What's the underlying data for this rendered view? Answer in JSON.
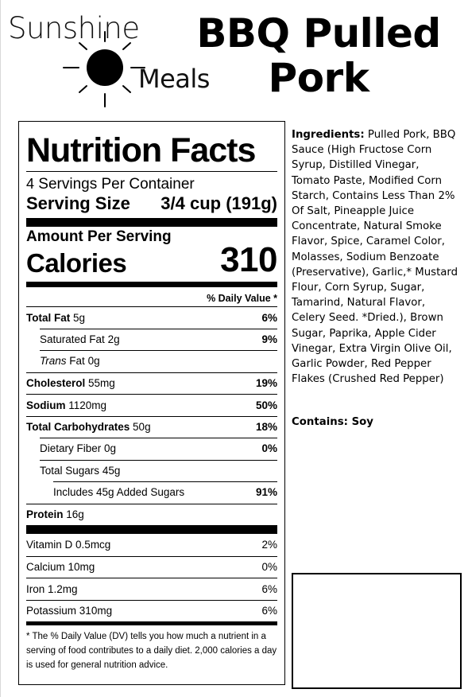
{
  "logo": {
    "word1": "Sunshine",
    "word2": "Meals",
    "icon": "sun-icon"
  },
  "product": {
    "title_line1": "BBQ Pulled",
    "title_line2": "Pork"
  },
  "nutrition": {
    "heading": "Nutrition Facts",
    "servings_count": "4",
    "servings_text": "Servings Per Container",
    "serving_size_label": "Serving Size",
    "serving_size_value": "3/4 cup (191g)",
    "amount_per_serving": "Amount Per Serving",
    "calories_label": "Calories",
    "calories_value": "310",
    "dv_header": "% Daily Value *",
    "rows": [
      {
        "name": "Total Fat",
        "amount": "5g",
        "dv": "6%"
      },
      {
        "name": "Saturated Fat",
        "amount": "2g",
        "dv": "9%"
      },
      {
        "name_italic": "Trans",
        "name": "Fat",
        "amount": "0g",
        "dv": ""
      },
      {
        "name": "Cholesterol",
        "amount": "55mg",
        "dv": "19%"
      },
      {
        "name": "Sodium",
        "amount": "1120mg",
        "dv": "50%"
      },
      {
        "name": "Total Carbohydrates",
        "amount": "50g",
        "dv": "18%"
      },
      {
        "name": "Dietary Fiber",
        "amount": "0g",
        "dv": "0%"
      },
      {
        "name": "Total Sugars",
        "amount": "45g",
        "dv": ""
      },
      {
        "name": "Includes 45g Added Sugars",
        "amount": "",
        "dv": "91%"
      },
      {
        "name": "Protein",
        "amount": "16g",
        "dv": ""
      }
    ],
    "vitamins": [
      {
        "name": "Vitamin D",
        "amount": "0.5mcg",
        "dv": "2%"
      },
      {
        "name": "Calcium",
        "amount": "10mg",
        "dv": "0%"
      },
      {
        "name": "Iron",
        "amount": "1.2mg",
        "dv": "6%"
      },
      {
        "name": "Potassium",
        "amount": "310mg",
        "dv": "6%"
      }
    ],
    "footnote": "* The % Daily Value (DV) tells you how much a nutrient in a serving of food contributes to a daily diet. 2,000 calories a day is used for general nutrition advice."
  },
  "ingredients": {
    "label": "Ingredients:",
    "text": "Pulled Pork, BBQ Sauce (High Fructose Corn Syrup, Distilled Vinegar, Tomato Paste, Modified Corn Starch, Contains Less Than 2% Of Salt, Pineapple Juice Concentrate, Natural Smoke Flavor, Spice, Caramel Color, Molasses, Sodium Benzoate (Preservative), Garlic,* Mustard Flour, Corn Syrup, Sugar, Tamarind, Natural Flavor, Celery Seed. *Dried.), Brown Sugar, Paprika, Apple Cider Vinegar, Extra Virgin Olive Oil, Garlic Powder, Red Pepper Flakes (Crushed Red Pepper)"
  },
  "contains": "Contains: Soy"
}
